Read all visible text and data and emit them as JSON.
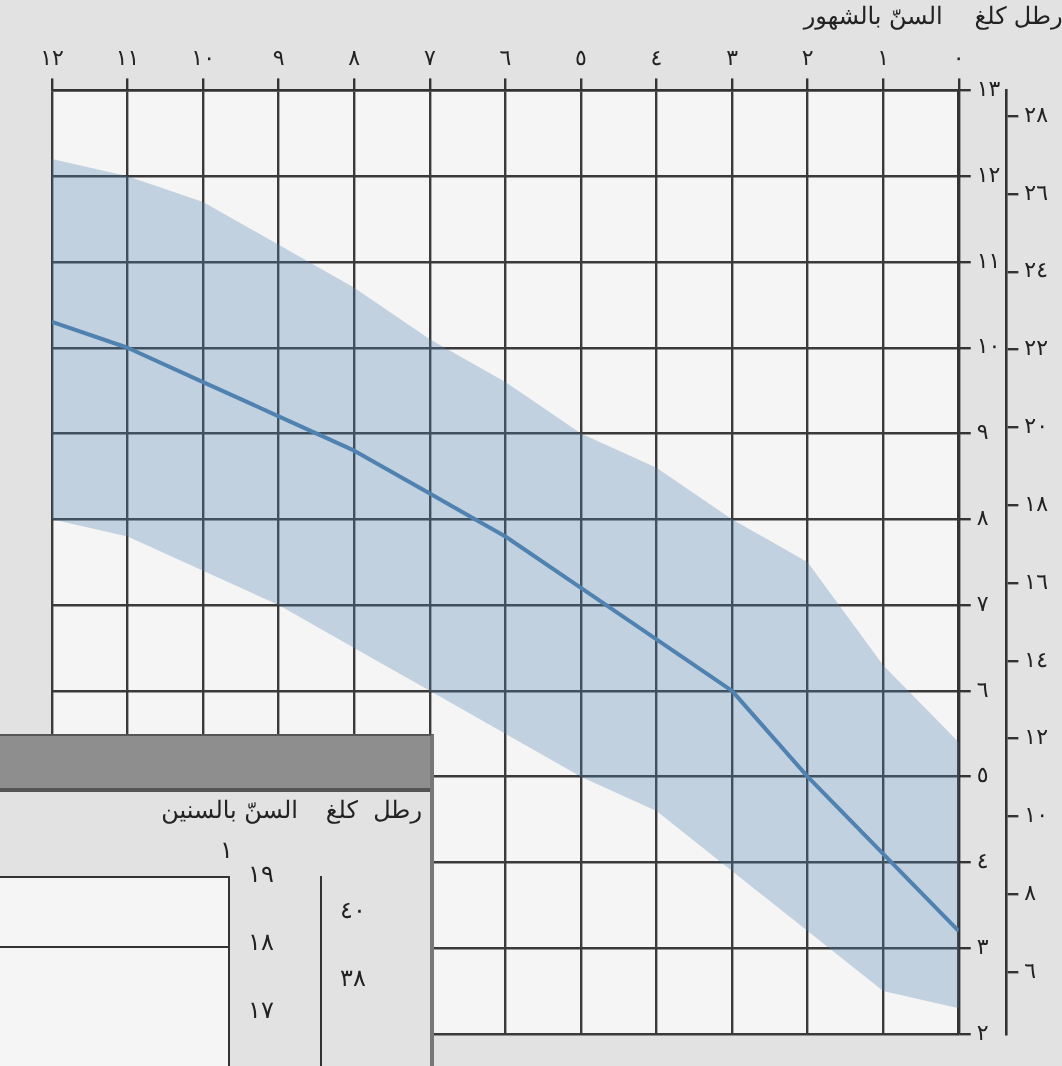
{
  "chart_data": [
    {
      "type": "line",
      "xlabel": "السنّ بالشهور",
      "ylabel": "كلغ",
      "y2label": "رطل",
      "x": [
        0,
        1,
        2,
        3,
        4,
        5,
        6,
        7,
        8,
        9,
        10,
        11,
        12
      ],
      "series": [
        {
          "color": "#4f82b0",
          "values": [
            3.2,
            4.1,
            5.0,
            6.0,
            6.6,
            7.2,
            7.8,
            8.3,
            8.8,
            9.2,
            9.6,
            10.0,
            10.3
          ],
          "lower": [
            2.3,
            2.5,
            3.2,
            3.9,
            4.6,
            5.0,
            5.5,
            6.0,
            6.5,
            7.0,
            7.4,
            7.8,
            8.0
          ],
          "upper": [
            5.4,
            6.3,
            7.5,
            8.0,
            8.6,
            9.0,
            9.6,
            10.1,
            10.7,
            11.2,
            11.7,
            12.0,
            12.2
          ]
        }
      ],
      "xlim": [
        12,
        0
      ],
      "xticks": [
        {
          "value": 0,
          "label": "٠"
        },
        {
          "value": 1,
          "label": "١"
        },
        {
          "value": 2,
          "label": "٢"
        },
        {
          "value": 3,
          "label": "٣"
        },
        {
          "value": 4,
          "label": "٤"
        },
        {
          "value": 5,
          "label": "٥"
        },
        {
          "value": 6,
          "label": "٦"
        },
        {
          "value": 7,
          "label": "٧"
        },
        {
          "value": 8,
          "label": "٨"
        },
        {
          "value": 9,
          "label": "٩"
        },
        {
          "value": 10,
          "label": "١٠"
        },
        {
          "value": 11,
          "label": "١١"
        },
        {
          "value": 12,
          "label": "١٢"
        }
      ],
      "ylim": [
        2,
        13
      ],
      "yticks": [
        {
          "value": 2,
          "label": "٢"
        },
        {
          "value": 3,
          "label": "٣"
        },
        {
          "value": 4,
          "label": "٤"
        },
        {
          "value": 5,
          "label": "٥"
        },
        {
          "value": 6,
          "label": "٦"
        },
        {
          "value": 7,
          "label": "٧"
        },
        {
          "value": 8,
          "label": "٨"
        },
        {
          "value": 9,
          "label": "٩"
        },
        {
          "value": 10,
          "label": "١٠"
        },
        {
          "value": 11,
          "label": "١١"
        },
        {
          "value": 12,
          "label": "١٢"
        },
        {
          "value": 13,
          "label": "١٣"
        }
      ],
      "y2lim": [
        4.41,
        28.66
      ],
      "y2ticks": [
        {
          "value": 6,
          "label": "٦"
        },
        {
          "value": 8,
          "label": "٨"
        },
        {
          "value": 10,
          "label": "١٠"
        },
        {
          "value": 12,
          "label": "١٢"
        },
        {
          "value": 14,
          "label": "١٤"
        },
        {
          "value": 16,
          "label": "١٦"
        },
        {
          "value": 18,
          "label": "١٨"
        },
        {
          "value": 20,
          "label": "٢٠"
        },
        {
          "value": 22,
          "label": "٢٢"
        },
        {
          "value": 24,
          "label": "٢٤"
        },
        {
          "value": 26,
          "label": "٢٦"
        },
        {
          "value": 28,
          "label": "٢٨"
        }
      ],
      "grid": true,
      "marker": "none"
    },
    {
      "type": "other",
      "xlabel": "السنّ بالسنين",
      "ylabel": "كلغ",
      "y2label": "رطل",
      "annotations": [
        "١",
        "١٩",
        "١٨",
        "١٧",
        "٤٠",
        "٣٨"
      ]
    }
  ]
}
